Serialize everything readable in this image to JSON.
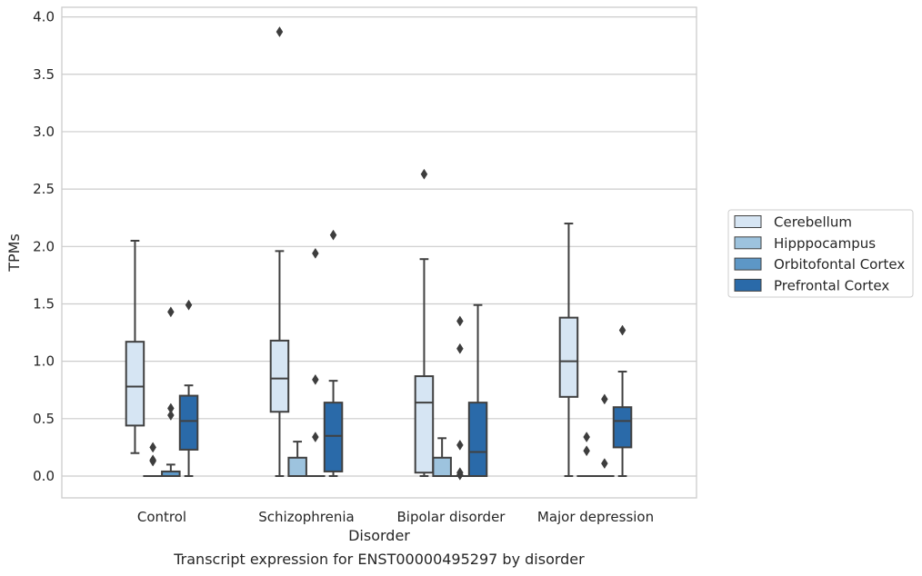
{
  "caption": "Transcript expression for ENST00000495297 by disorder",
  "chart_data": {
    "type": "box",
    "xlabel": "Disorder",
    "ylabel": "TPMs",
    "ylim": [
      -0.18,
      4.07
    ],
    "yticks": [
      0.0,
      0.5,
      1.0,
      1.5,
      2.0,
      2.5,
      3.0,
      3.5,
      4.0
    ],
    "ytick_labels": [
      "0.0",
      "0.5",
      "1.0",
      "1.5",
      "2.0",
      "2.5",
      "3.0",
      "3.5",
      "4.0"
    ],
    "grid": "horizontal",
    "legend_placement": "right",
    "categories": [
      "Control",
      "Schizophrenia",
      "Bipolar disorder",
      "Major depression"
    ],
    "series": [
      {
        "name": "Cerebellum",
        "color": "#d6e5f3",
        "boxes": [
          {
            "whislo": 0.2,
            "q1": 0.44,
            "med": 0.78,
            "q3": 1.17,
            "whishi": 2.05,
            "fliers": []
          },
          {
            "whislo": 0.0,
            "q1": 0.56,
            "med": 0.85,
            "q3": 1.18,
            "whishi": 1.96,
            "fliers": [
              3.87
            ]
          },
          {
            "whislo": 0.0,
            "q1": 0.03,
            "med": 0.64,
            "q3": 0.87,
            "whishi": 1.89,
            "fliers": [
              2.63
            ]
          },
          {
            "whislo": 0.0,
            "q1": 0.69,
            "med": 1.0,
            "q3": 1.38,
            "whishi": 2.2,
            "fliers": []
          }
        ]
      },
      {
        "name": "Hipppocampus",
        "color": "#9dc3de",
        "boxes": [
          {
            "whislo": 0.0,
            "q1": 0.0,
            "med": 0.0,
            "q3": 0.0,
            "whishi": 0.0,
            "fliers": [
              0.25,
              0.14,
              0.13
            ]
          },
          {
            "whislo": 0.0,
            "q1": 0.0,
            "med": 0.0,
            "q3": 0.16,
            "whishi": 0.3,
            "fliers": []
          },
          {
            "whislo": 0.0,
            "q1": 0.0,
            "med": 0.0,
            "q3": 0.16,
            "whishi": 0.33,
            "fliers": []
          },
          {
            "whislo": 0.0,
            "q1": 0.0,
            "med": 0.0,
            "q3": 0.0,
            "whishi": 0.0,
            "fliers": [
              0.34,
              0.22
            ]
          }
        ]
      },
      {
        "name": "Orbitofontal Cortex",
        "color": "#5d97c6",
        "boxes": [
          {
            "whislo": 0.0,
            "q1": 0.0,
            "med": 0.0,
            "q3": 0.04,
            "whishi": 0.1,
            "fliers": [
              1.43,
              0.59,
              0.53
            ]
          },
          {
            "whislo": 0.0,
            "q1": 0.0,
            "med": 0.0,
            "q3": 0.0,
            "whishi": 0.0,
            "fliers": [
              1.94,
              0.84,
              0.34
            ]
          },
          {
            "whislo": 0.0,
            "q1": 0.0,
            "med": 0.0,
            "q3": 0.0,
            "whishi": 0.0,
            "fliers": [
              1.35,
              1.11,
              0.27,
              0.03,
              0.01
            ]
          },
          {
            "whislo": 0.0,
            "q1": 0.0,
            "med": 0.0,
            "q3": 0.0,
            "whishi": 0.0,
            "fliers": [
              0.67,
              0.11
            ]
          }
        ]
      },
      {
        "name": "Prefrontal Cortex",
        "color": "#2a6aa9",
        "boxes": [
          {
            "whislo": 0.0,
            "q1": 0.23,
            "med": 0.48,
            "q3": 0.7,
            "whishi": 0.79,
            "fliers": [
              1.49
            ]
          },
          {
            "whislo": 0.0,
            "q1": 0.04,
            "med": 0.35,
            "q3": 0.64,
            "whishi": 0.83,
            "fliers": [
              2.1
            ]
          },
          {
            "whislo": 0.0,
            "q1": 0.0,
            "med": 0.21,
            "q3": 0.64,
            "whishi": 1.49,
            "fliers": []
          },
          {
            "whislo": 0.0,
            "q1": 0.25,
            "med": 0.48,
            "q3": 0.6,
            "whishi": 0.91,
            "fliers": [
              1.27
            ]
          }
        ]
      }
    ]
  }
}
